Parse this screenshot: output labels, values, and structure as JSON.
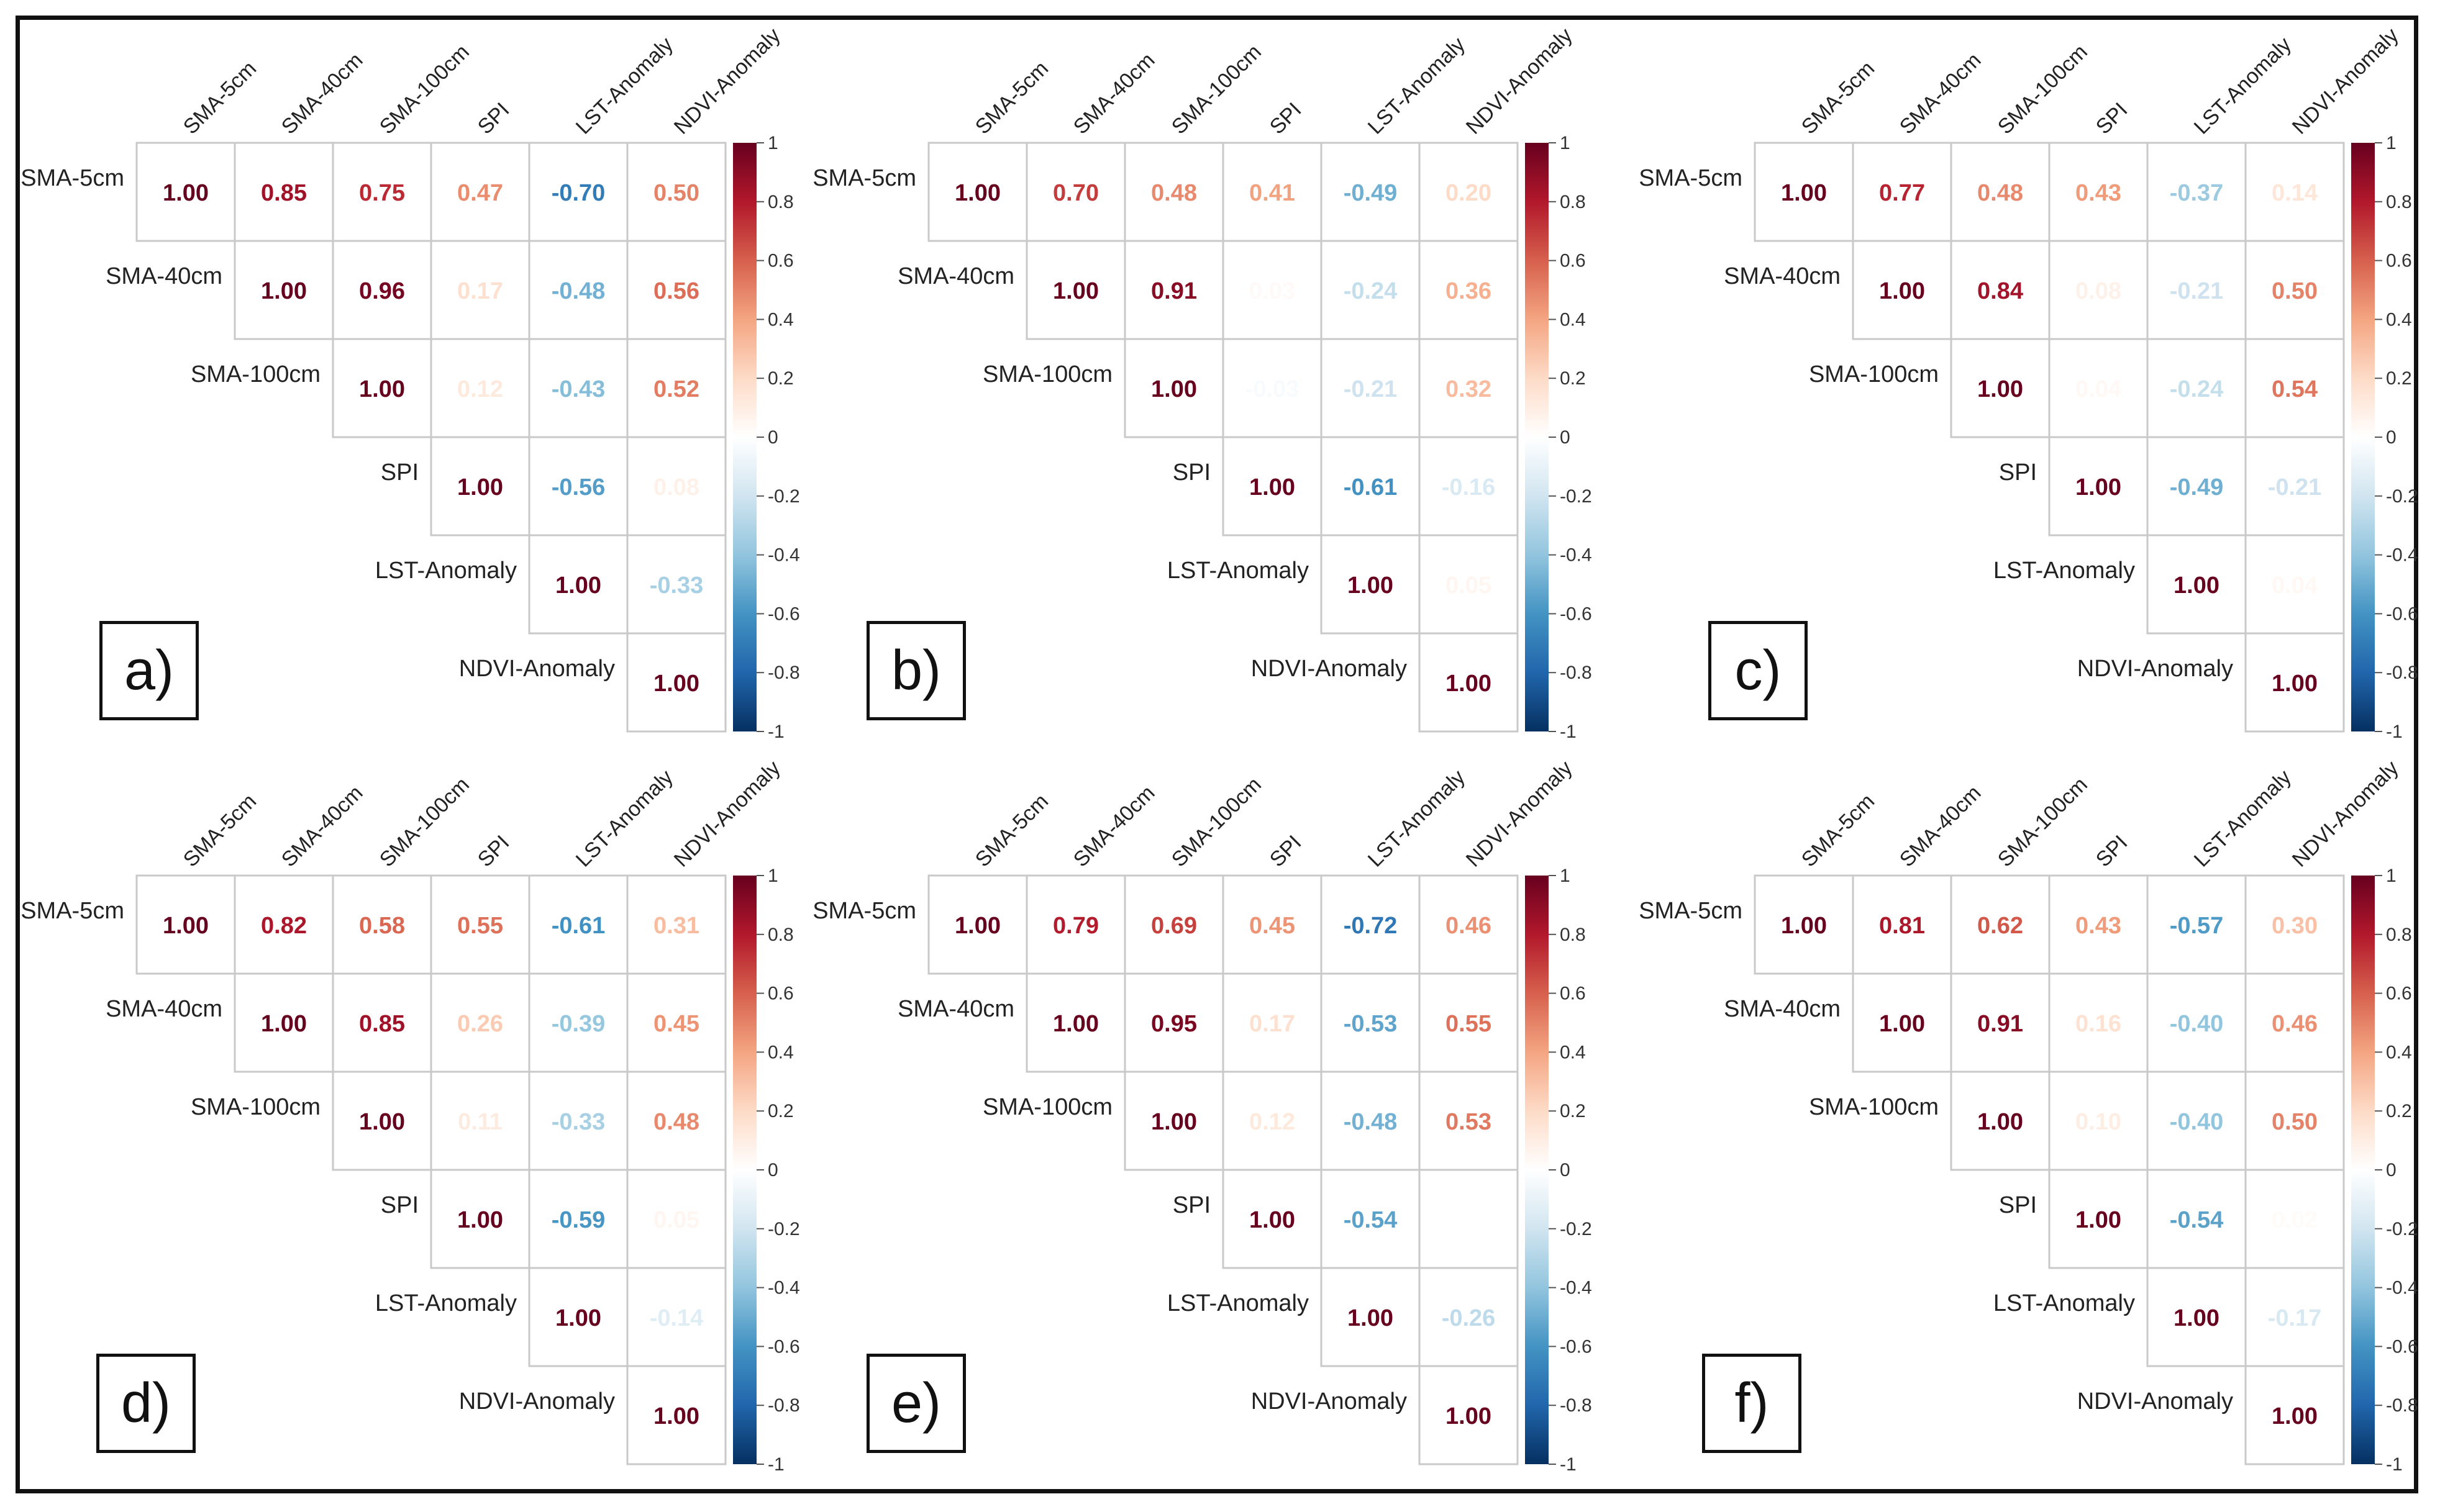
{
  "chart_data": {
    "type": "heatmap",
    "variables": [
      "SMA-5cm",
      "SMA-40cm",
      "SMA-100cm",
      "SPI",
      "LST-Anomaly",
      "NDVI-Anomaly"
    ],
    "colorbar": {
      "range": [
        -1,
        1
      ],
      "ticks": [
        "1",
        "0.8",
        "0.6",
        "0.4",
        "0.2",
        "0",
        "-0.2",
        "-0.4",
        "-0.6",
        "-0.8",
        "-1"
      ],
      "colors": [
        "#67001f",
        "#b2182b",
        "#d6604d",
        "#f4a582",
        "#fddbc7",
        "#ffffff",
        "#d1e5f0",
        "#92c5de",
        "#4393c3",
        "#2166ac",
        "#053061"
      ]
    },
    "panels": [
      {
        "label": "a)",
        "matrix": [
          [
            1.0,
            0.85,
            0.75,
            0.47,
            -0.7,
            0.5
          ],
          [
            null,
            1.0,
            0.96,
            0.17,
            -0.48,
            0.56
          ],
          [
            null,
            null,
            1.0,
            0.12,
            -0.43,
            0.52
          ],
          [
            null,
            null,
            null,
            1.0,
            -0.56,
            0.08
          ],
          [
            null,
            null,
            null,
            null,
            1.0,
            -0.33
          ],
          [
            null,
            null,
            null,
            null,
            null,
            1.0
          ]
        ]
      },
      {
        "label": "b)",
        "matrix": [
          [
            1.0,
            0.7,
            0.48,
            0.41,
            -0.49,
            0.2
          ],
          [
            null,
            1.0,
            0.91,
            0.03,
            -0.24,
            0.36
          ],
          [
            null,
            null,
            1.0,
            -0.03,
            -0.21,
            0.32
          ],
          [
            null,
            null,
            null,
            1.0,
            -0.61,
            -0.16
          ],
          [
            null,
            null,
            null,
            null,
            1.0,
            0.05
          ],
          [
            null,
            null,
            null,
            null,
            null,
            1.0
          ]
        ]
      },
      {
        "label": "c)",
        "matrix": [
          [
            1.0,
            0.77,
            0.48,
            0.43,
            -0.37,
            0.14
          ],
          [
            null,
            1.0,
            0.84,
            0.08,
            -0.21,
            0.5
          ],
          [
            null,
            null,
            1.0,
            0.04,
            -0.24,
            0.54
          ],
          [
            null,
            null,
            null,
            1.0,
            -0.49,
            -0.21
          ],
          [
            null,
            null,
            null,
            null,
            1.0,
            0.04
          ],
          [
            null,
            null,
            null,
            null,
            null,
            1.0
          ]
        ]
      },
      {
        "label": "d)",
        "matrix": [
          [
            1.0,
            0.82,
            0.58,
            0.55,
            -0.61,
            0.31
          ],
          [
            null,
            1.0,
            0.85,
            0.26,
            -0.39,
            0.45
          ],
          [
            null,
            null,
            1.0,
            0.11,
            -0.33,
            0.48
          ],
          [
            null,
            null,
            null,
            1.0,
            -0.59,
            0.05
          ],
          [
            null,
            null,
            null,
            null,
            1.0,
            -0.14
          ],
          [
            null,
            null,
            null,
            null,
            null,
            1.0
          ]
        ]
      },
      {
        "label": "e)",
        "matrix": [
          [
            1.0,
            0.79,
            0.69,
            0.45,
            -0.72,
            0.46
          ],
          [
            null,
            1.0,
            0.95,
            0.17,
            -0.53,
            0.55
          ],
          [
            null,
            null,
            1.0,
            0.12,
            -0.48,
            0.53
          ],
          [
            null,
            null,
            null,
            1.0,
            -0.54,
            0.0
          ],
          [
            null,
            null,
            null,
            null,
            1.0,
            -0.26
          ],
          [
            null,
            null,
            null,
            null,
            null,
            1.0
          ]
        ]
      },
      {
        "label": "f)",
        "matrix": [
          [
            1.0,
            0.81,
            0.62,
            0.43,
            -0.57,
            0.3
          ],
          [
            null,
            1.0,
            0.91,
            0.16,
            -0.4,
            0.46
          ],
          [
            null,
            null,
            1.0,
            0.1,
            -0.4,
            0.5
          ],
          [
            null,
            null,
            null,
            1.0,
            -0.54,
            0.02
          ],
          [
            null,
            null,
            null,
            null,
            1.0,
            -0.17
          ],
          [
            null,
            null,
            null,
            null,
            null,
            1.0
          ]
        ]
      }
    ]
  }
}
